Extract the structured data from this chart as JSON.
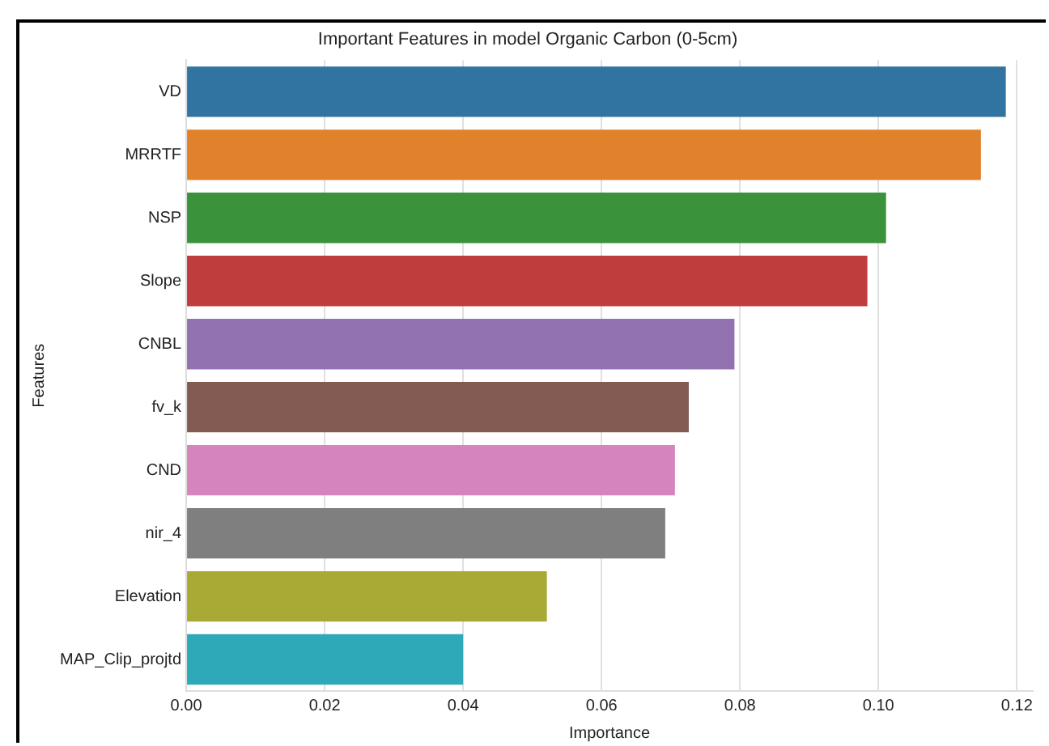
{
  "chart_data": {
    "type": "bar",
    "orientation": "horizontal",
    "title": "Important Features in model Organic Carbon (0-5cm)",
    "xlabel": "Importance",
    "ylabel": "Features",
    "categories": [
      "VD",
      "MRRTF",
      "NSP",
      "Slope",
      "CNBL",
      "fv_k",
      "CND",
      "nir_4",
      "Elevation",
      "MAP_Clip_projtd"
    ],
    "values": [
      0.1184,
      0.1148,
      0.1011,
      0.0984,
      0.0792,
      0.0726,
      0.0706,
      0.0692,
      0.0521,
      0.04
    ],
    "colors": [
      "#3274a1",
      "#e1812c",
      "#3a923a",
      "#c03d3e",
      "#9372b2",
      "#845b53",
      "#d684bd",
      "#7f7f7f",
      "#a9aa35",
      "#2ea9b8"
    ],
    "xlim": [
      0,
      0.1223
    ],
    "xticks": [
      {
        "value": 0,
        "label": "0.00"
      },
      {
        "value": 0.02,
        "label": "0.02"
      },
      {
        "value": 0.04,
        "label": "0.04"
      },
      {
        "value": 0.06,
        "label": "0.06"
      },
      {
        "value": 0.08,
        "label": "0.08"
      },
      {
        "value": 0.1,
        "label": "0.10"
      },
      {
        "value": 0.12,
        "label": "0.12"
      }
    ],
    "grid": "x"
  }
}
